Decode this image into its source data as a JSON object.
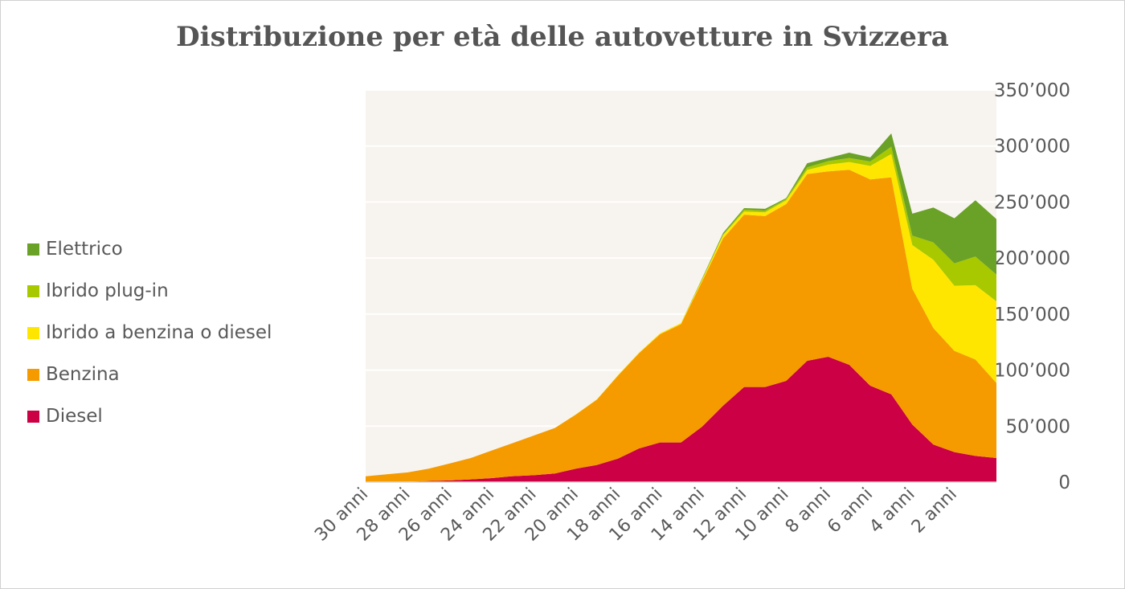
{
  "chart_data": {
    "type": "area",
    "stacked": true,
    "title": "Distribuzione per età delle autovetture in Svizzera",
    "x": [
      30,
      29,
      28,
      27,
      26,
      25,
      24,
      23,
      22,
      21,
      20,
      19,
      18,
      17,
      16,
      15,
      14,
      13,
      12,
      11,
      10,
      9,
      8,
      7,
      6,
      5,
      4,
      3,
      2,
      1,
      0
    ],
    "x_tick_labels": [
      "30 anni",
      "28 anni",
      "26 anni",
      "24 anni",
      "22 anni",
      "20 anni",
      "18 anni",
      "16 anni",
      "14 anni",
      "12 anni",
      "10 anni",
      "8 anni",
      "6 anni",
      "4 anni",
      "2 anni"
    ],
    "y_tick_labels": [
      "0",
      "50’000",
      "100’000",
      "150’000",
      "200’000",
      "250’000",
      "300’000",
      "350’000"
    ],
    "ylim": [
      0,
      350000
    ],
    "y_axis_position": "right",
    "grid": true,
    "legend_position": "left",
    "series": [
      {
        "name": "Diesel",
        "color": "#cc0044",
        "values": [
          0,
          0,
          300,
          1000,
          1500,
          2400,
          3600,
          5300,
          6200,
          7700,
          12000,
          15300,
          21000,
          30000,
          35400,
          35400,
          49500,
          68200,
          84900,
          84900,
          90400,
          108300,
          111900,
          104700,
          86100,
          78400,
          51400,
          33500,
          26800,
          23400,
          21500
        ]
      },
      {
        "name": "Benzina",
        "color": "#f59b00",
        "values": [
          5200,
          7000,
          8400,
          11000,
          15200,
          19100,
          24600,
          29600,
          35400,
          40600,
          48300,
          58400,
          74000,
          85000,
          96600,
          105600,
          129500,
          149400,
          153800,
          152600,
          157800,
          166700,
          165500,
          174100,
          184100,
          193700,
          121300,
          104000,
          90400,
          86100,
          67000
        ]
      },
      {
        "name": "Ibrido a benzina o diesel",
        "color": "#ffe600",
        "values": [
          0,
          0,
          0,
          0,
          0,
          0,
          0,
          0,
          0,
          0,
          200,
          300,
          500,
          600,
          800,
          1000,
          1600,
          2900,
          2800,
          3300,
          3400,
          3600,
          6000,
          6900,
          12000,
          20800,
          38900,
          61000,
          58100,
          66300,
          72900
        ]
      },
      {
        "name": "Ibrido plug-in",
        "color": "#a8c800",
        "values": [
          0,
          0,
          0,
          0,
          0,
          0,
          0,
          0,
          0,
          0,
          0,
          0,
          0,
          0,
          0,
          0,
          300,
          500,
          1700,
          1500,
          1100,
          2400,
          3100,
          3600,
          4000,
          6500,
          8400,
          15500,
          20000,
          25600,
          23900
        ]
      },
      {
        "name": "Elettrico",
        "color": "#6aa127",
        "values": [
          0,
          0,
          0,
          0,
          0,
          0,
          0,
          0,
          0,
          0,
          0,
          0,
          0,
          0,
          0,
          0,
          800,
          1400,
          1400,
          1600,
          800,
          3600,
          2800,
          4800,
          3600,
          11900,
          19600,
          31100,
          40200,
          50200,
          49500
        ]
      }
    ],
    "plot_background": "#f7f4ef"
  }
}
